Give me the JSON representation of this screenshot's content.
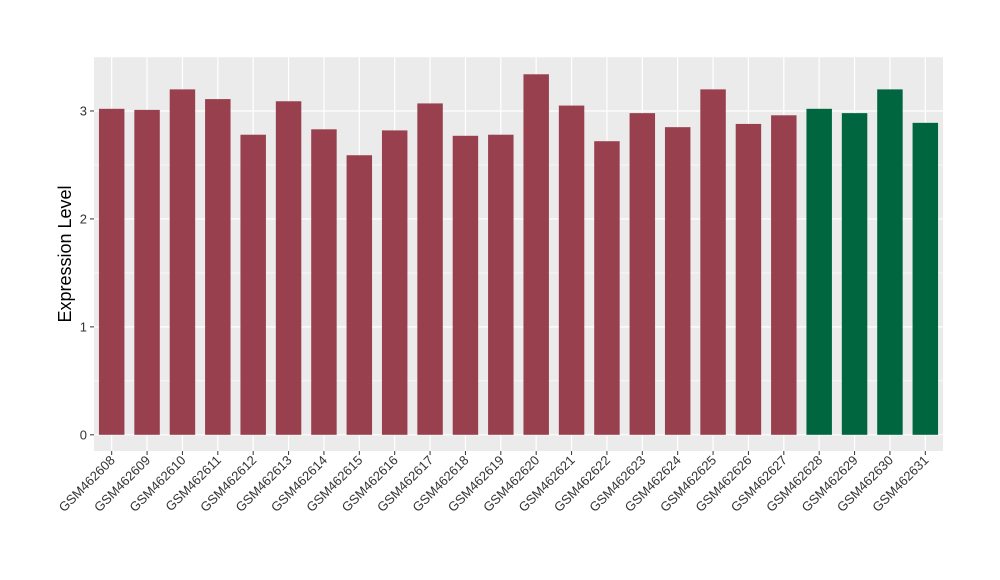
{
  "chart_data": {
    "type": "bar",
    "title": "",
    "xlabel": "",
    "ylabel": "Expression Level",
    "ylim": [
      -0.15,
      3.5
    ],
    "yticks": [
      0,
      1,
      2,
      3
    ],
    "grid": true,
    "legend": "none",
    "categories": [
      "GSM462608",
      "GSM462609",
      "GSM462610",
      "GSM462611",
      "GSM462612",
      "GSM462613",
      "GSM462614",
      "GSM462615",
      "GSM462616",
      "GSM462617",
      "GSM462618",
      "GSM462619",
      "GSM462620",
      "GSM462621",
      "GSM462622",
      "GSM462623",
      "GSM462624",
      "GSM462625",
      "GSM462626",
      "GSM462627",
      "GSM462628",
      "GSM462629",
      "GSM462630",
      "GSM462631"
    ],
    "values": [
      3.02,
      3.01,
      3.2,
      3.11,
      2.78,
      3.09,
      2.83,
      2.59,
      2.82,
      3.07,
      2.77,
      2.78,
      3.34,
      3.05,
      2.72,
      2.98,
      2.85,
      3.2,
      2.88,
      2.96,
      3.02,
      2.98,
      3.2,
      2.89
    ],
    "bar_groups": [
      0,
      0,
      0,
      0,
      0,
      0,
      0,
      0,
      0,
      0,
      0,
      0,
      0,
      0,
      0,
      0,
      0,
      0,
      0,
      0,
      1,
      1,
      1,
      1
    ],
    "group_colors": [
      "#99404f",
      "#006640"
    ],
    "panel_color": "#ebebeb",
    "grid_color": "#ffffff"
  }
}
